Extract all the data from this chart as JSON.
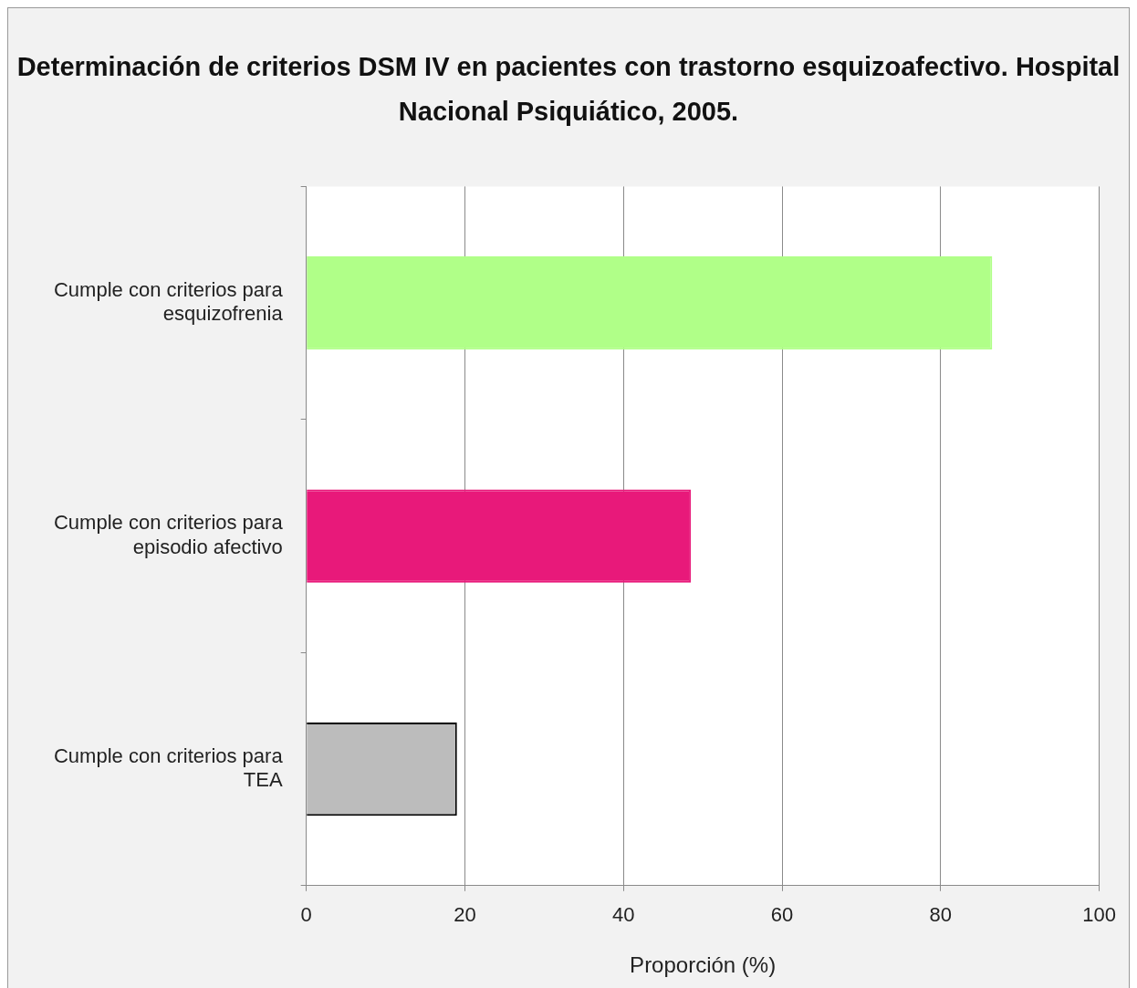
{
  "chart_data": {
    "type": "bar",
    "orientation": "horizontal",
    "title": "Determinación de criterios DSM IV en  pacientes con trastorno esquizoafectivo. Hospital Nacional Psiquiático, 2005.",
    "xlabel": "Proporción (%)",
    "categories": [
      "Cumple con criterios para esquizofrenia",
      "Cumple con criterios para episodio afectivo",
      "Cumple con criterios para TEA"
    ],
    "values": [
      86.5,
      48.5,
      19
    ],
    "colors": [
      "#b0ff88",
      "#e8197a",
      "#bcbcbc"
    ],
    "xlim": [
      0,
      100
    ],
    "xticks": [
      0,
      20,
      40,
      60,
      80,
      100
    ],
    "grid": "x",
    "legend": false
  }
}
